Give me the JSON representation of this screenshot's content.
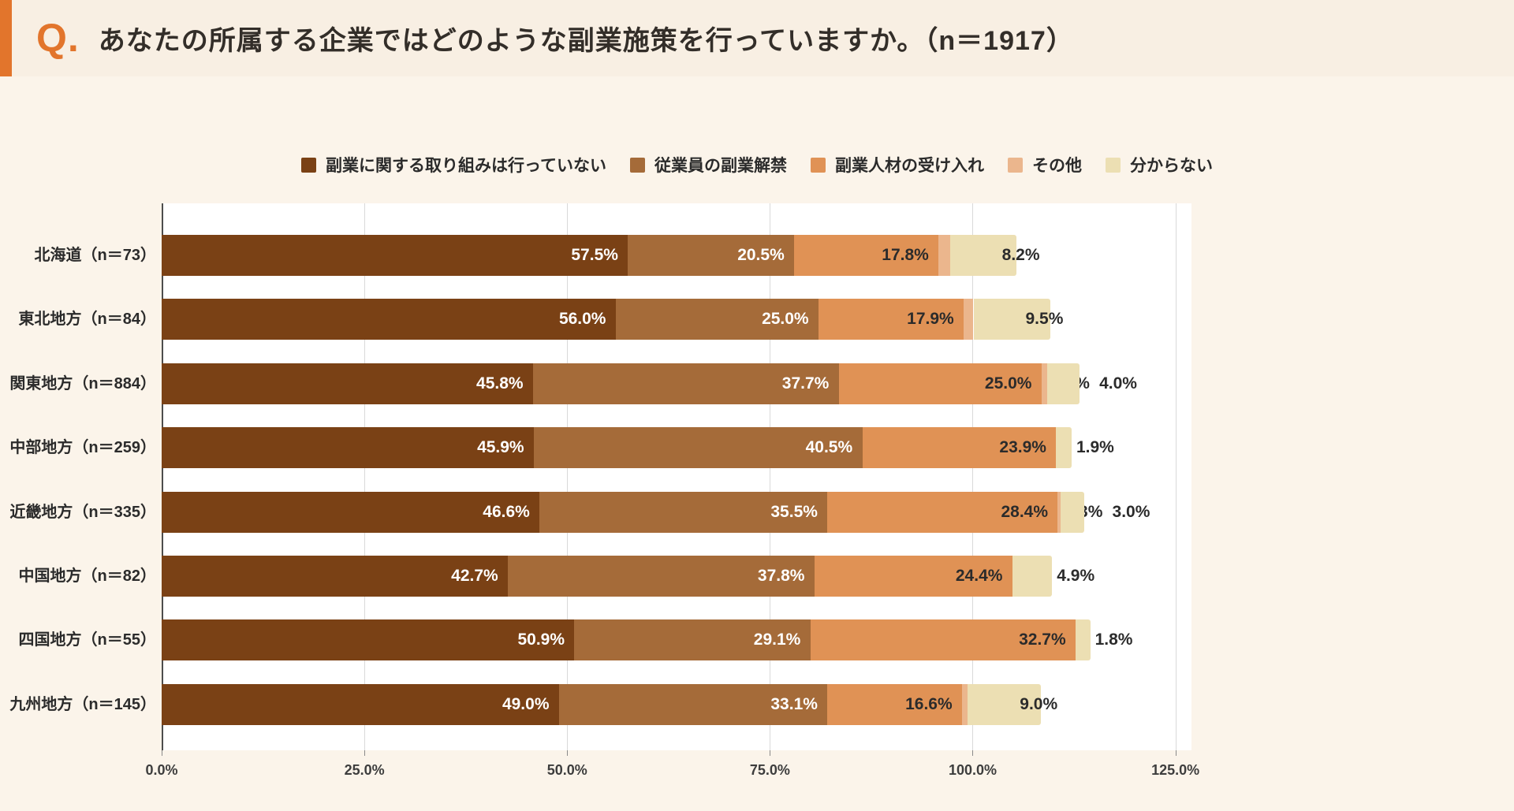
{
  "header": {
    "q_label": "Q.",
    "title": "あなたの所属する企業ではどのような副業施策を行っていますか。（n＝1917）"
  },
  "colors": {
    "accent_orange": "#e2752c",
    "header_bg": "#f8efe3",
    "page_bg": "#fbf4ea",
    "plot_bg": "#ffffff",
    "gridline": "#d9d9d9",
    "axis_line": "#4d4d4d",
    "text_dark": "#2b2b2b",
    "text_light": "#ffffff"
  },
  "chart_data": {
    "type": "bar",
    "variant": "horizontal-stacked",
    "title": "あなたの所属する企業ではどのような副業施策を行っていますか。（n＝1917）",
    "sample_size": "n＝1917",
    "grid": true,
    "legend_position": "top",
    "xlabel": "",
    "ylabel": "",
    "x_min": 0,
    "x_max": 125,
    "x_tick_step": 25,
    "x_ticks": [
      "0.0%",
      "25.0%",
      "50.0%",
      "75.0%",
      "100.0%",
      "125.0%"
    ],
    "categories": [
      "北海道（n＝73）",
      "東北地方（n＝84）",
      "関東地方（n＝884）",
      "中部地方（n＝259）",
      "近畿地方（n＝335）",
      "中国地方（n＝82）",
      "四国地方（n＝55）",
      "九州地方（n＝145）"
    ],
    "series": [
      {
        "name": "副業に関する取り組みは行っていない",
        "color": "#7a4115",
        "label_color": "#ffffff",
        "values": [
          57.5,
          56.0,
          45.8,
          45.9,
          46.6,
          42.7,
          50.9,
          49.0
        ]
      },
      {
        "name": "従業員の副業解禁",
        "color": "#a56b39",
        "label_color": "#ffffff",
        "values": [
          20.5,
          25.0,
          37.7,
          40.5,
          35.5,
          37.8,
          29.1,
          33.1
        ]
      },
      {
        "name": "副業人材の受け入れ",
        "color": "#e09255",
        "label_color": "#2b2b2b",
        "values": [
          17.8,
          17.9,
          25.0,
          23.9,
          28.4,
          24.4,
          32.7,
          16.6
        ]
      },
      {
        "name": "その他",
        "color": "#ebb68d",
        "label_color": "#2b2b2b",
        "values": [
          1.4,
          1.2,
          0.7,
          0,
          0.3,
          0,
          0,
          0.7
        ]
      },
      {
        "name": "分からない",
        "color": "#ecdfb3",
        "label_color": "#2b2b2b",
        "values": [
          8.2,
          9.5,
          4.0,
          1.9,
          3.0,
          4.9,
          1.8,
          9.0
        ]
      }
    ],
    "value_suffix": "%"
  }
}
